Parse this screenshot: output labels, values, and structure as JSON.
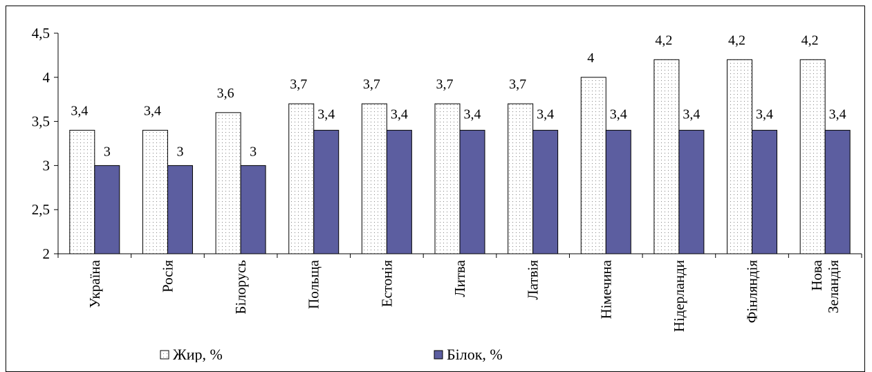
{
  "chart_data": {
    "type": "bar",
    "categories": [
      "Україна",
      "Росія",
      "Білорусь",
      "Польща",
      "Естонія",
      "Литва",
      "Латвія",
      "Німечина",
      "Нідерланди",
      "Фінляндія",
      "Нова Зеландія"
    ],
    "series": [
      {
        "name": "Жир, %",
        "values": [
          3.4,
          3.4,
          3.6,
          3.7,
          3.7,
          3.7,
          3.7,
          4,
          4.2,
          4.2,
          4.2
        ],
        "labels": [
          "3,4",
          "3,4",
          "3,6",
          "3,7",
          "3,7",
          "3,7",
          "3,7",
          "4",
          "4,2",
          "4,2",
          "4,2"
        ],
        "color": "#ffffff",
        "pattern": "dotted"
      },
      {
        "name": "Білок, %",
        "values": [
          3,
          3,
          3,
          3.4,
          3.4,
          3.4,
          3.4,
          3.4,
          3.4,
          3.4,
          3.4
        ],
        "labels": [
          "3",
          "3",
          "3",
          "3,4",
          "3,4",
          "3,4",
          "3,4",
          "3,4",
          "3,4",
          "3,4",
          "3,4"
        ],
        "color": "#5c5ea0"
      }
    ],
    "ylim": [
      2,
      4.5
    ],
    "yticks": [
      2,
      2.5,
      3,
      3.5,
      4,
      4.5
    ],
    "ytick_labels": [
      "2",
      "2,5",
      "3",
      "3,5",
      "4",
      "4,5"
    ],
    "legend_position": "bottom",
    "grid": false
  }
}
